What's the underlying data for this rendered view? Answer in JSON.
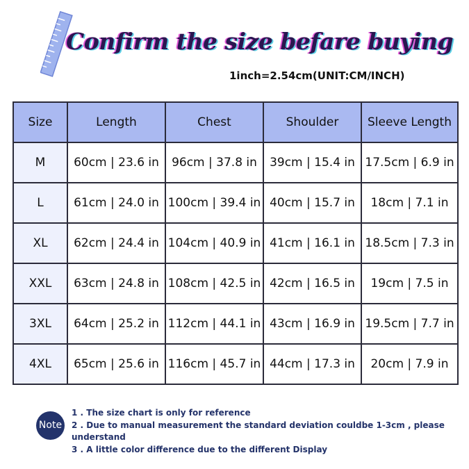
{
  "header": {
    "title": "Confirm the size befare buying",
    "subtitle": "1inch=2.54cm(UNIT:CM/INCH)"
  },
  "table": {
    "columns": [
      "Size",
      "Length",
      "Chest",
      "Shoulder",
      "Sleeve Length"
    ],
    "rows": [
      [
        "M",
        "60cm | 23.6 in",
        "96cm | 37.8 in",
        "39cm | 15.4 in",
        "17.5cm | 6.9 in"
      ],
      [
        "L",
        "61cm | 24.0 in",
        "100cm | 39.4 in",
        "40cm | 15.7 in",
        "18cm | 7.1 in"
      ],
      [
        "XL",
        "62cm | 24.4 in",
        "104cm | 40.9 in",
        "41cm | 16.1 in",
        "18.5cm | 7.3 in"
      ],
      [
        "XXL",
        "63cm | 24.8 in",
        "108cm | 42.5 in",
        "42cm | 16.5 in",
        "19cm | 7.5 in"
      ],
      [
        "3XL",
        "64cm | 25.2 in",
        "112cm | 44.1 in",
        "43cm | 16.9 in",
        "19.5cm | 7.7 in"
      ],
      [
        "4XL",
        "65cm | 25.6 in",
        "116cm | 45.7 in",
        "44cm | 17.3 in",
        "20cm | 7.9 in"
      ]
    ]
  },
  "note": {
    "label": "Note",
    "lines": [
      "1 . The size chart is only for reference",
      "2 . Due to manual measurement the standard deviation couldbe 1-3cm , please understand",
      "3 . A little color difference due to the different Display"
    ]
  }
}
